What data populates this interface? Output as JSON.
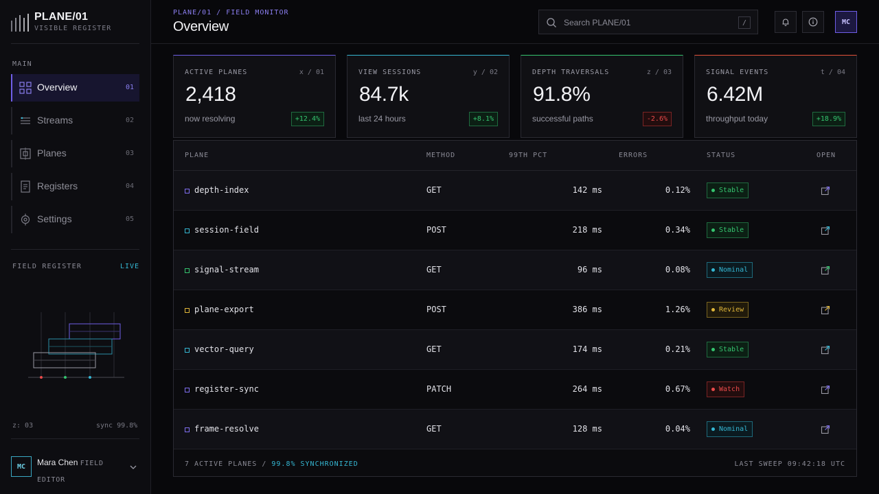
{
  "brand": {
    "title": "PLANE/01",
    "subtitle": "VISIBLE REGISTER"
  },
  "sidebar": {
    "section_main": "MAIN",
    "items": [
      {
        "label": "Overview",
        "num": "01",
        "icon": "grid-icon",
        "active": true
      },
      {
        "label": "Streams",
        "num": "02",
        "icon": "streams-icon",
        "active": false
      },
      {
        "label": "Planes",
        "num": "03",
        "icon": "planes-icon",
        "active": false
      },
      {
        "label": "Registers",
        "num": "04",
        "icon": "register-icon",
        "active": false
      },
      {
        "label": "Settings",
        "num": "05",
        "icon": "settings-icon",
        "active": false
      }
    ],
    "field_register": {
      "label": "FIELD REGISTER",
      "live": "LIVE",
      "z": "z: 03",
      "sync": "sync 99.8%"
    },
    "user": {
      "initials": "MC",
      "name": "Mara Chen",
      "role": "FIELD EDITOR"
    }
  },
  "header": {
    "breadcrumb": "PLANE/01 / FIELD MONITOR",
    "title": "Overview",
    "search_placeholder": "Search PLANE/01",
    "search_shortcut": "/",
    "avatar_initials": "MC"
  },
  "stats": [
    {
      "label": "ACTIVE PLANES",
      "axis": "x / 01",
      "value": "2,418",
      "desc": "now resolving",
      "delta": "+12.4%",
      "trend": "up",
      "accent": "#6f5ee8"
    },
    {
      "label": "VIEW SESSIONS",
      "axis": "y / 02",
      "value": "84.7k",
      "desc": "last 24 hours",
      "delta": "+8.1%",
      "trend": "up",
      "accent": "#35b7d3"
    },
    {
      "label": "DEPTH TRAVERSALS",
      "axis": "z / 03",
      "value": "91.8%",
      "desc": "successful paths",
      "delta": "-2.6%",
      "trend": "down",
      "accent": "#35c46f"
    },
    {
      "label": "SIGNAL EVENTS",
      "axis": "t / 04",
      "value": "6.42M",
      "desc": "throughput today",
      "delta": "+18.9%",
      "trend": "up",
      "accent": "#e5533a"
    }
  ],
  "table": {
    "columns": [
      "PLANE",
      "METHOD",
      "99TH PCT",
      "ERRORS",
      "STATUS",
      "OPEN"
    ],
    "rows": [
      {
        "plane": "depth-index",
        "method": "GET",
        "p99": "142 ms",
        "errors": "0.12%",
        "status": "Stable",
        "dot": "#7f6ff0"
      },
      {
        "plane": "session-field",
        "method": "POST",
        "p99": "218 ms",
        "errors": "0.34%",
        "status": "Stable",
        "dot": "#35b7d3"
      },
      {
        "plane": "signal-stream",
        "method": "GET",
        "p99": "96 ms",
        "errors": "0.08%",
        "status": "Nominal",
        "dot": "#35c46f"
      },
      {
        "plane": "plane-export",
        "method": "POST",
        "p99": "386 ms",
        "errors": "1.26%",
        "status": "Review",
        "dot": "#e1b73a"
      },
      {
        "plane": "vector-query",
        "method": "GET",
        "p99": "174 ms",
        "errors": "0.21%",
        "status": "Stable",
        "dot": "#35b7d3"
      },
      {
        "plane": "register-sync",
        "method": "PATCH",
        "p99": "264 ms",
        "errors": "0.67%",
        "status": "Watch",
        "dot": "#7f6ff0"
      },
      {
        "plane": "frame-resolve",
        "method": "GET",
        "p99": "128 ms",
        "errors": "0.04%",
        "status": "Nominal",
        "dot": "#7f6ff0"
      }
    ],
    "footer_left": "7 ACTIVE PLANES /",
    "footer_sync": "99.8% SYNCHRONIZED",
    "footer_right": "LAST SWEEP 09:42:18 UTC"
  },
  "status_colors": {
    "Stable": {
      "fg": "#35c46f",
      "border": "#1f6b3f",
      "bg": "#0c1f14"
    },
    "Nominal": {
      "fg": "#35b7d3",
      "border": "#1e6a7c",
      "bg": "#0b1a20"
    },
    "Review": {
      "fg": "#e1b73a",
      "border": "#7a6420",
      "bg": "#201a0b"
    },
    "Watch": {
      "fg": "#ea4a4a",
      "border": "#7a2424",
      "bg": "#220d0e"
    }
  }
}
